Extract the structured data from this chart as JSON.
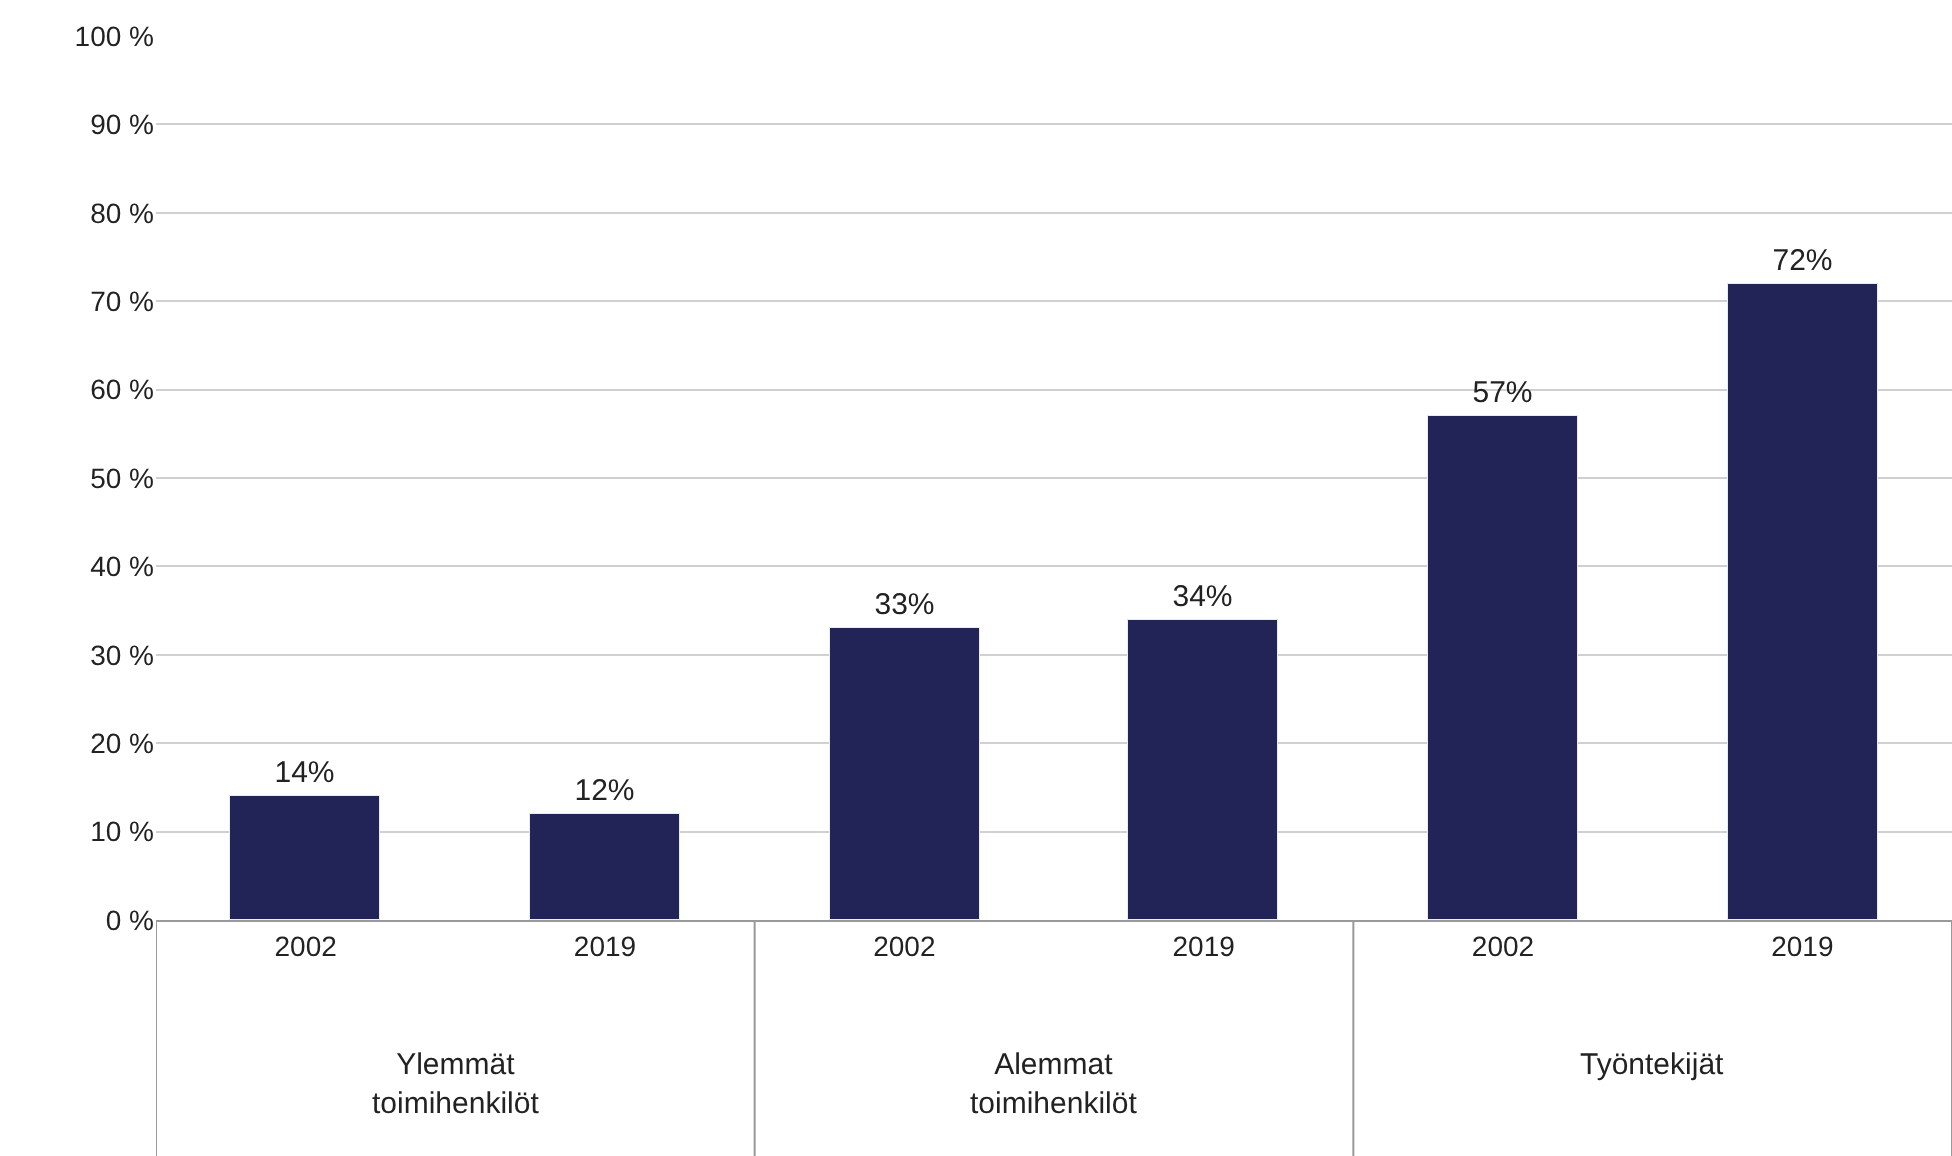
{
  "chart_data": {
    "type": "bar",
    "categories": [
      "2002",
      "2019",
      "2002",
      "2019",
      "2002",
      "2019"
    ],
    "values": [
      14,
      12,
      33,
      34,
      57,
      72
    ],
    "value_labels": [
      "14%",
      "12%",
      "33%",
      "34%",
      "57%",
      "72%"
    ],
    "color": "#222357",
    "ylim": [
      0,
      100
    ],
    "yticks": [
      {
        "value": 0,
        "label": "0 %"
      },
      {
        "value": 10,
        "label": "10 %"
      },
      {
        "value": 20,
        "label": "20 %"
      },
      {
        "value": 30,
        "label": "30 %"
      },
      {
        "value": 40,
        "label": "40 %"
      },
      {
        "value": 50,
        "label": "50 %"
      },
      {
        "value": 60,
        "label": "60 %"
      },
      {
        "value": 70,
        "label": "70 %"
      },
      {
        "value": 80,
        "label": "80 %"
      },
      {
        "value": 90,
        "label": "90 %"
      },
      {
        "value": 100,
        "label": "100 %"
      }
    ],
    "grid": "y",
    "annotations": [
      "Ylemmät\ntoimihenkilöt",
      "Alemmat\ntoimihenkilöt",
      "Työntekijät"
    ]
  }
}
